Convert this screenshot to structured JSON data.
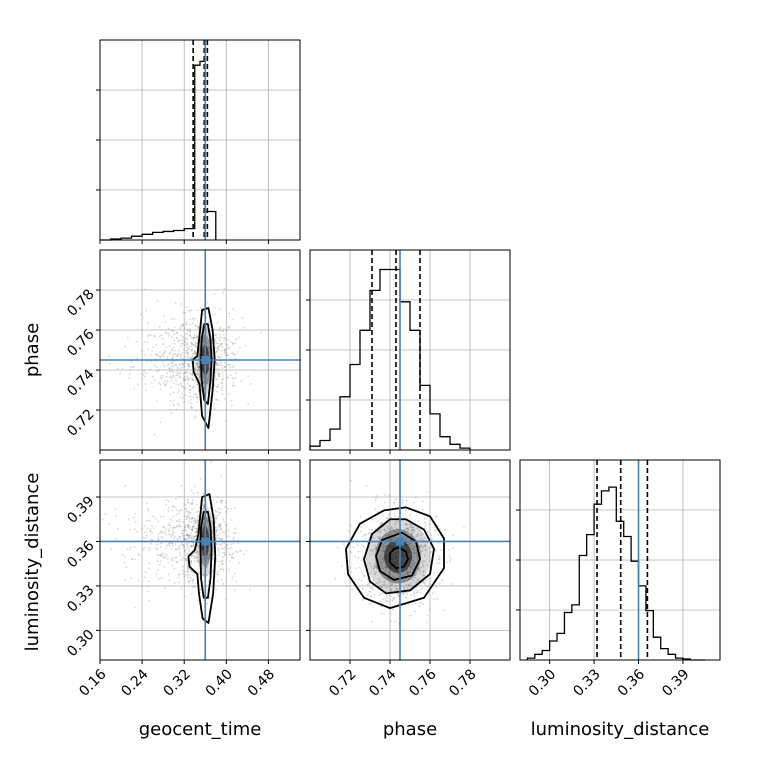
{
  "chart_data": {
    "type": "corner",
    "parameters": [
      "geocent_time",
      "phase",
      "luminosity_distance"
    ],
    "truth": {
      "geocent_time": 0.36,
      "phase": 0.745,
      "luminosity_distance": 0.36
    },
    "colors": {
      "truth": "#4682b4",
      "line": "#000000",
      "grid": "#b0b0b0",
      "sample": "#8c8c8c"
    },
    "axes": {
      "geocent_time": {
        "range": [
          0.16,
          0.54
        ],
        "ticks": [
          "0.16",
          "0.24",
          "0.32",
          "0.40",
          "0.48"
        ]
      },
      "phase": {
        "range": [
          0.7,
          0.8
        ],
        "ticks": [
          "0.72",
          "0.74",
          "0.76",
          "0.78"
        ]
      },
      "luminosity_distance": {
        "range": [
          0.28,
          0.415
        ],
        "ticks": [
          "0.30",
          "0.33",
          "0.36",
          "0.39"
        ]
      }
    },
    "histograms": {
      "geocent_time": {
        "edges": [
          0.16,
          0.18,
          0.2,
          0.22,
          0.24,
          0.26,
          0.28,
          0.3,
          0.32,
          0.34,
          0.35,
          0.36,
          0.38
        ],
        "heights": [
          0.0,
          0.005,
          0.01,
          0.02,
          0.03,
          0.04,
          0.045,
          0.05,
          0.06,
          0.92,
          0.94,
          0.15
        ],
        "quantiles": [
          0.337,
          0.358,
          0.364
        ]
      },
      "phase": {
        "edges": [
          0.7,
          0.705,
          0.71,
          0.715,
          0.72,
          0.725,
          0.73,
          0.735,
          0.74,
          0.745,
          0.75,
          0.755,
          0.76,
          0.765,
          0.77,
          0.775,
          0.78
        ],
        "heights": [
          0.02,
          0.05,
          0.11,
          0.28,
          0.45,
          0.63,
          0.84,
          0.95,
          0.95,
          0.78,
          0.63,
          0.34,
          0.19,
          0.07,
          0.03,
          0.01
        ],
        "quantiles": [
          0.731,
          0.743,
          0.755
        ]
      },
      "luminosity_distance": {
        "edges": [
          0.285,
          0.29,
          0.295,
          0.3,
          0.305,
          0.31,
          0.315,
          0.32,
          0.325,
          0.33,
          0.335,
          0.34,
          0.345,
          0.35,
          0.355,
          0.36,
          0.365,
          0.37,
          0.375,
          0.38,
          0.385,
          0.39,
          0.395,
          0.4,
          0.405
        ],
        "heights": [
          0.01,
          0.03,
          0.05,
          0.1,
          0.14,
          0.25,
          0.29,
          0.55,
          0.66,
          0.82,
          0.89,
          0.91,
          0.73,
          0.65,
          0.52,
          0.39,
          0.26,
          0.12,
          0.06,
          0.03,
          0.01,
          0.005,
          0.0,
          0.0
        ],
        "quantiles": [
          0.332,
          0.348,
          0.366
        ]
      }
    },
    "pairs": [
      {
        "x": "geocent_time",
        "y": "phase",
        "cx": 0.36,
        "cy": 0.745,
        "sx": 0.03,
        "sy": 0.011,
        "contours": [
          [
            [
              0.365,
              0.763
            ],
            [
              0.37,
              0.755
            ],
            [
              0.372,
              0.745
            ],
            [
              0.37,
              0.735
            ],
            [
              0.365,
              0.723
            ],
            [
              0.358,
              0.725
            ],
            [
              0.353,
              0.735
            ],
            [
              0.352,
              0.745
            ],
            [
              0.353,
              0.755
            ],
            [
              0.358,
              0.763
            ]
          ],
          [
            [
              0.366,
              0.771
            ],
            [
              0.374,
              0.76
            ],
            [
              0.378,
              0.745
            ],
            [
              0.374,
              0.73
            ],
            [
              0.366,
              0.711
            ],
            [
              0.354,
              0.717
            ],
            [
              0.349,
              0.733
            ],
            [
              0.338,
              0.739
            ],
            [
              0.336,
              0.745
            ],
            [
              0.345,
              0.747
            ],
            [
              0.349,
              0.757
            ],
            [
              0.354,
              0.77
            ]
          ]
        ]
      },
      {
        "x": "geocent_time",
        "y": "luminosity_distance",
        "cx": 0.36,
        "cy": 0.36,
        "sx": 0.03,
        "sy": 0.015,
        "contours": [
          [
            [
              0.365,
              0.38
            ],
            [
              0.37,
              0.37
            ],
            [
              0.372,
              0.355
            ],
            [
              0.37,
              0.335
            ],
            [
              0.365,
              0.322
            ],
            [
              0.357,
              0.322
            ],
            [
              0.352,
              0.335
            ],
            [
              0.351,
              0.355
            ],
            [
              0.352,
              0.37
            ],
            [
              0.357,
              0.38
            ]
          ],
          [
            [
              0.368,
              0.392
            ],
            [
              0.376,
              0.375
            ],
            [
              0.379,
              0.35
            ],
            [
              0.375,
              0.325
            ],
            [
              0.366,
              0.305
            ],
            [
              0.355,
              0.308
            ],
            [
              0.348,
              0.325
            ],
            [
              0.345,
              0.338
            ],
            [
              0.33,
              0.343
            ],
            [
              0.328,
              0.35
            ],
            [
              0.34,
              0.354
            ],
            [
              0.347,
              0.365
            ],
            [
              0.354,
              0.39
            ]
          ]
        ]
      },
      {
        "x": "phase",
        "y": "luminosity_distance",
        "cx": 0.744,
        "cy": 0.35,
        "sx": 0.01,
        "sy": 0.016,
        "contours": [
          [
            [
              0.7445,
              0.356
            ],
            [
              0.748,
              0.353
            ],
            [
              0.749,
              0.348
            ],
            [
              0.747,
              0.343
            ],
            [
              0.743,
              0.342
            ],
            [
              0.74,
              0.346
            ],
            [
              0.74,
              0.352
            ],
            [
              0.742,
              0.355
            ]
          ],
          [
            [
              0.746,
              0.366
            ],
            [
              0.753,
              0.36
            ],
            [
              0.755,
              0.348
            ],
            [
              0.751,
              0.337
            ],
            [
              0.742,
              0.334
            ],
            [
              0.735,
              0.34
            ],
            [
              0.733,
              0.35
            ],
            [
              0.736,
              0.361
            ]
          ],
          [
            [
              0.748,
              0.375
            ],
            [
              0.757,
              0.368
            ],
            [
              0.762,
              0.355
            ],
            [
              0.76,
              0.338
            ],
            [
              0.75,
              0.327
            ],
            [
              0.738,
              0.325
            ],
            [
              0.73,
              0.333
            ],
            [
              0.727,
              0.348
            ],
            [
              0.731,
              0.365
            ],
            [
              0.74,
              0.375
            ]
          ],
          [
            [
              0.748,
              0.383
            ],
            [
              0.76,
              0.377
            ],
            [
              0.767,
              0.362
            ],
            [
              0.767,
              0.342
            ],
            [
              0.757,
              0.322
            ],
            [
              0.74,
              0.315
            ],
            [
              0.727,
              0.322
            ],
            [
              0.719,
              0.338
            ],
            [
              0.718,
              0.355
            ],
            [
              0.725,
              0.372
            ],
            [
              0.737,
              0.381
            ]
          ]
        ]
      }
    ],
    "xlabels": [
      "geocent_time",
      "phase",
      "luminosity_distance"
    ],
    "ylabels": [
      "phase",
      "luminosity_distance"
    ],
    "grid": true
  }
}
